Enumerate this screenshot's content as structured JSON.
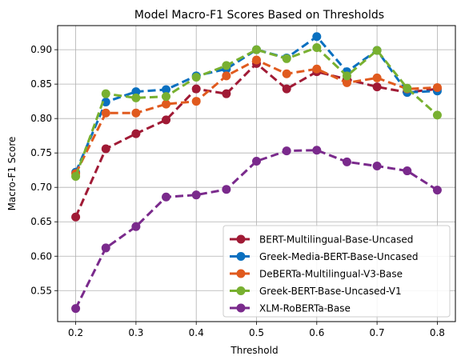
{
  "chart_data": {
    "type": "line",
    "title": "Model Macro-F1 Scores Based on Thresholds",
    "xlabel": "Threshold",
    "ylabel": "Macro-F1 Score",
    "xlim": [
      0.17,
      0.83
    ],
    "ylim": [
      0.505,
      0.935
    ],
    "xticks": [
      0.2,
      0.3,
      0.4,
      0.5,
      0.6,
      0.7,
      0.8
    ],
    "xtick_labels": [
      "0.2",
      "0.3",
      "0.4",
      "0.5",
      "0.6",
      "0.7",
      "0.8"
    ],
    "yticks": [
      0.55,
      0.6,
      0.65,
      0.7,
      0.75,
      0.8,
      0.85,
      0.9
    ],
    "ytick_labels": [
      "0.55",
      "0.60",
      "0.65",
      "0.70",
      "0.75",
      "0.80",
      "0.85",
      "0.90"
    ],
    "grid": true,
    "legend_position": "bottom-right",
    "x": [
      0.2,
      0.25,
      0.3,
      0.35,
      0.4,
      0.45,
      0.5,
      0.55,
      0.6,
      0.65,
      0.7,
      0.75,
      0.8
    ],
    "series": [
      {
        "name": "BERT-Multilingual-Base-Uncased",
        "color": "#a01a35",
        "values": [
          0.657,
          0.756,
          0.778,
          0.798,
          0.843,
          0.836,
          0.88,
          0.843,
          0.868,
          0.857,
          0.846,
          0.838,
          0.843
        ]
      },
      {
        "name": "Greek-Media-BERT-Base-Uncased",
        "color": "#0a70c0",
        "values": [
          0.722,
          0.824,
          0.839,
          0.842,
          0.862,
          0.872,
          0.9,
          0.888,
          0.919,
          0.868,
          0.899,
          0.838,
          0.84
        ]
      },
      {
        "name": "DeBERTa-Multilingual-V3-Base",
        "color": "#e05a1e",
        "values": [
          0.72,
          0.808,
          0.808,
          0.821,
          0.825,
          0.862,
          0.885,
          0.865,
          0.872,
          0.852,
          0.859,
          0.843,
          0.845
        ]
      },
      {
        "name": "Greek-BERT-Base-Uncased-V1",
        "color": "#78b030",
        "values": [
          0.716,
          0.836,
          0.83,
          0.832,
          0.86,
          0.877,
          0.9,
          0.887,
          0.903,
          0.862,
          0.899,
          0.844,
          0.805
        ]
      },
      {
        "name": "XLM-RoBERTa-Base",
        "color": "#7a2a8c",
        "values": [
          0.524,
          0.612,
          0.643,
          0.686,
          0.689,
          0.697,
          0.738,
          0.753,
          0.754,
          0.737,
          0.731,
          0.724,
          0.696
        ]
      }
    ]
  }
}
